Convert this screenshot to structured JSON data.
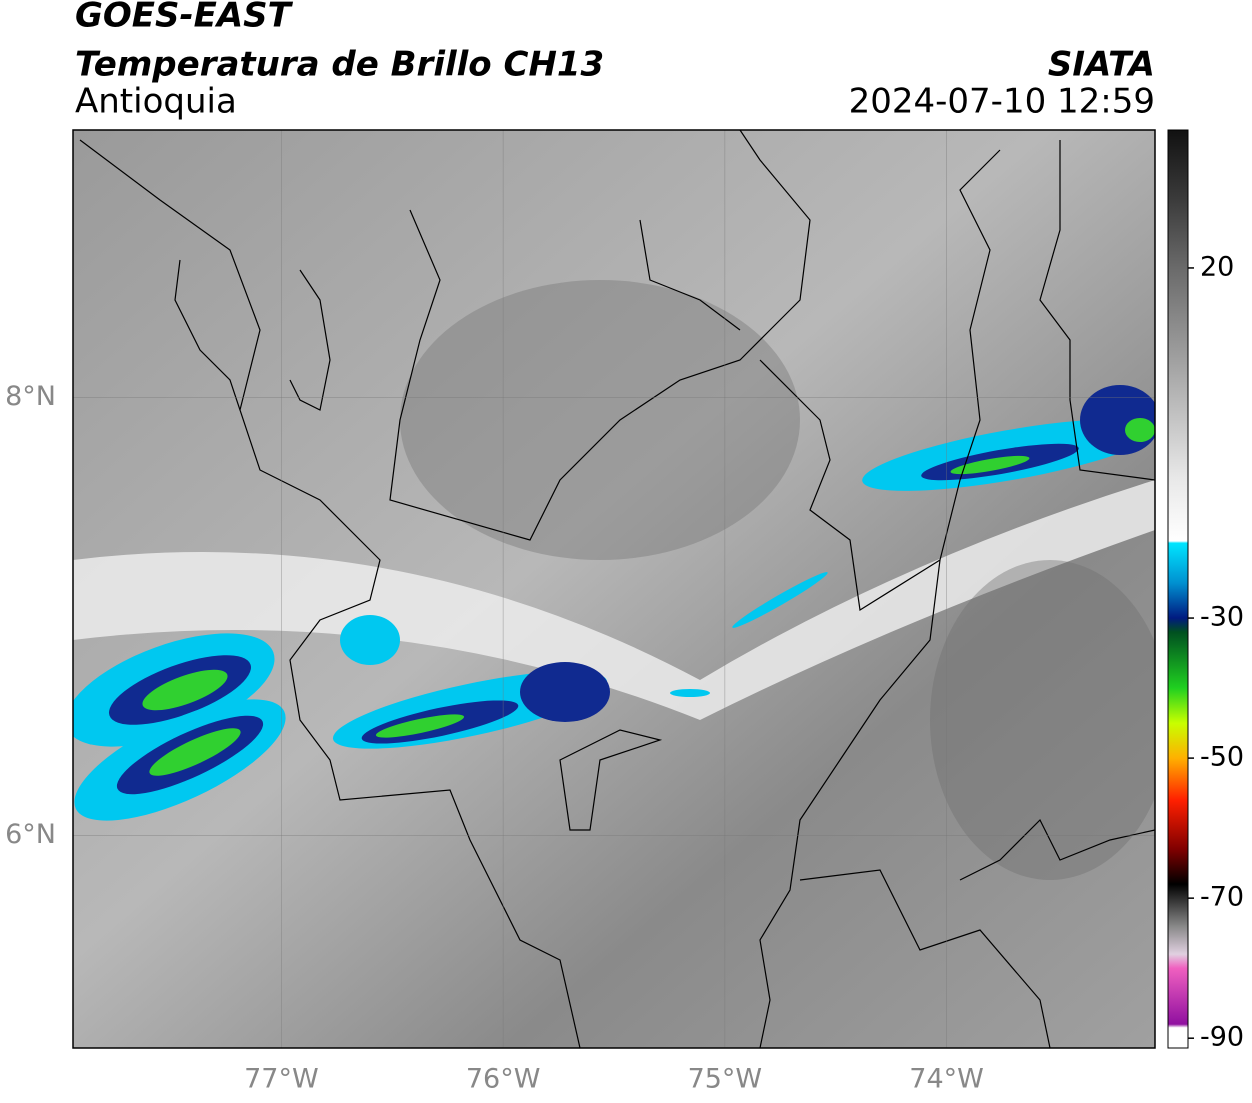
{
  "header": {
    "title": "GOES-EAST",
    "subtitle": "Temperatura de Brillo CH13",
    "region": "Antioquia",
    "source": "SIATA",
    "timestamp": "2024-07-10 12:59"
  },
  "map": {
    "lonlim": [
      -77.94,
      -73.06
    ],
    "latlim": [
      5.03,
      9.22
    ],
    "lonticks": [
      {
        "value": -77,
        "label": "77°W"
      },
      {
        "value": -76,
        "label": "76°W"
      },
      {
        "value": -75,
        "label": "75°W"
      },
      {
        "value": -74,
        "label": "74°W"
      }
    ],
    "latticks": [
      {
        "value": 8,
        "label": "8°N"
      },
      {
        "value": 6,
        "label": "6°N"
      }
    ],
    "grid": true
  },
  "colorbar": {
    "lim": [
      -91.4,
      39.7
    ],
    "ticks": [
      20,
      -30,
      -50,
      -70,
      -90
    ],
    "colormap": [
      {
        "value": 39.7,
        "color": "#111111"
      },
      {
        "value": 30,
        "color": "#3a3a3a"
      },
      {
        "value": 20,
        "color": "#6a6a6a"
      },
      {
        "value": 5,
        "color": "#a8a8a8"
      },
      {
        "value": -10,
        "color": "#e8e8e8"
      },
      {
        "value": -19,
        "color": "#ffffff"
      },
      {
        "value": -19.3,
        "color": "#00e5ff"
      },
      {
        "value": -25,
        "color": "#0090d0"
      },
      {
        "value": -30,
        "color": "#001a80"
      },
      {
        "value": -32,
        "color": "#005020"
      },
      {
        "value": -40,
        "color": "#20d020"
      },
      {
        "value": -45,
        "color": "#c8ff00"
      },
      {
        "value": -50,
        "color": "#ffb000"
      },
      {
        "value": -56,
        "color": "#ff2000"
      },
      {
        "value": -63,
        "color": "#800000"
      },
      {
        "value": -68,
        "color": "#000000"
      },
      {
        "value": -74,
        "color": "#888888"
      },
      {
        "value": -78,
        "color": "#e0d0e0"
      },
      {
        "value": -80,
        "color": "#f060c0"
      },
      {
        "value": -88,
        "color": "#9010a0"
      },
      {
        "value": -88.5,
        "color": "#ffffff"
      },
      {
        "value": -91.4,
        "color": "#ffffff"
      }
    ]
  }
}
